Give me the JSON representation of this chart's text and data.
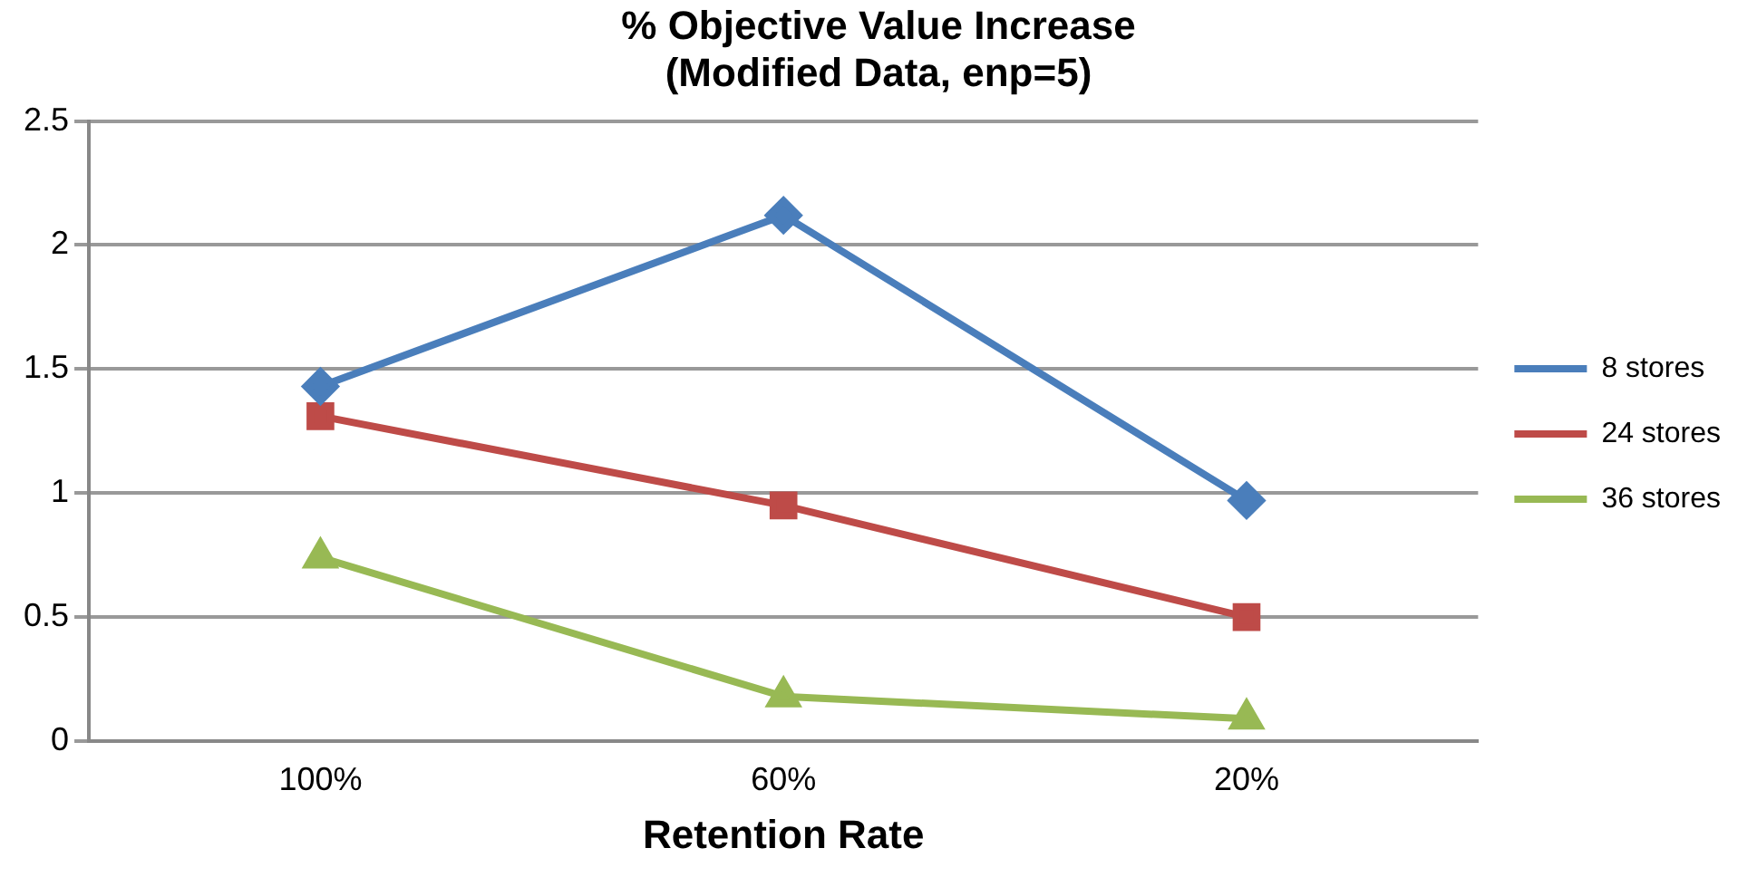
{
  "chart_data": {
    "type": "line",
    "title": "% Objective Value Increase\n(Modified Data, enp=5)",
    "xlabel": "Retention Rate",
    "categories": [
      "100%",
      "60%",
      "20%"
    ],
    "series": [
      {
        "name": "8 stores",
        "color": "#4a7ebb",
        "marker": "diamond",
        "values": [
          1.43,
          2.12,
          0.97
        ]
      },
      {
        "name": "24 stores",
        "color": "#be4b48",
        "marker": "square",
        "values": [
          1.31,
          0.95,
          0.5
        ]
      },
      {
        "name": "36 stores",
        "color": "#98b954",
        "marker": "triangle",
        "values": [
          0.74,
          0.18,
          0.09
        ]
      }
    ],
    "ylim": [
      0,
      2.5
    ],
    "yticks": [
      0,
      0.5,
      1,
      1.5,
      2,
      2.5
    ],
    "grid": "y",
    "legend": "right",
    "line_style": "solid"
  }
}
